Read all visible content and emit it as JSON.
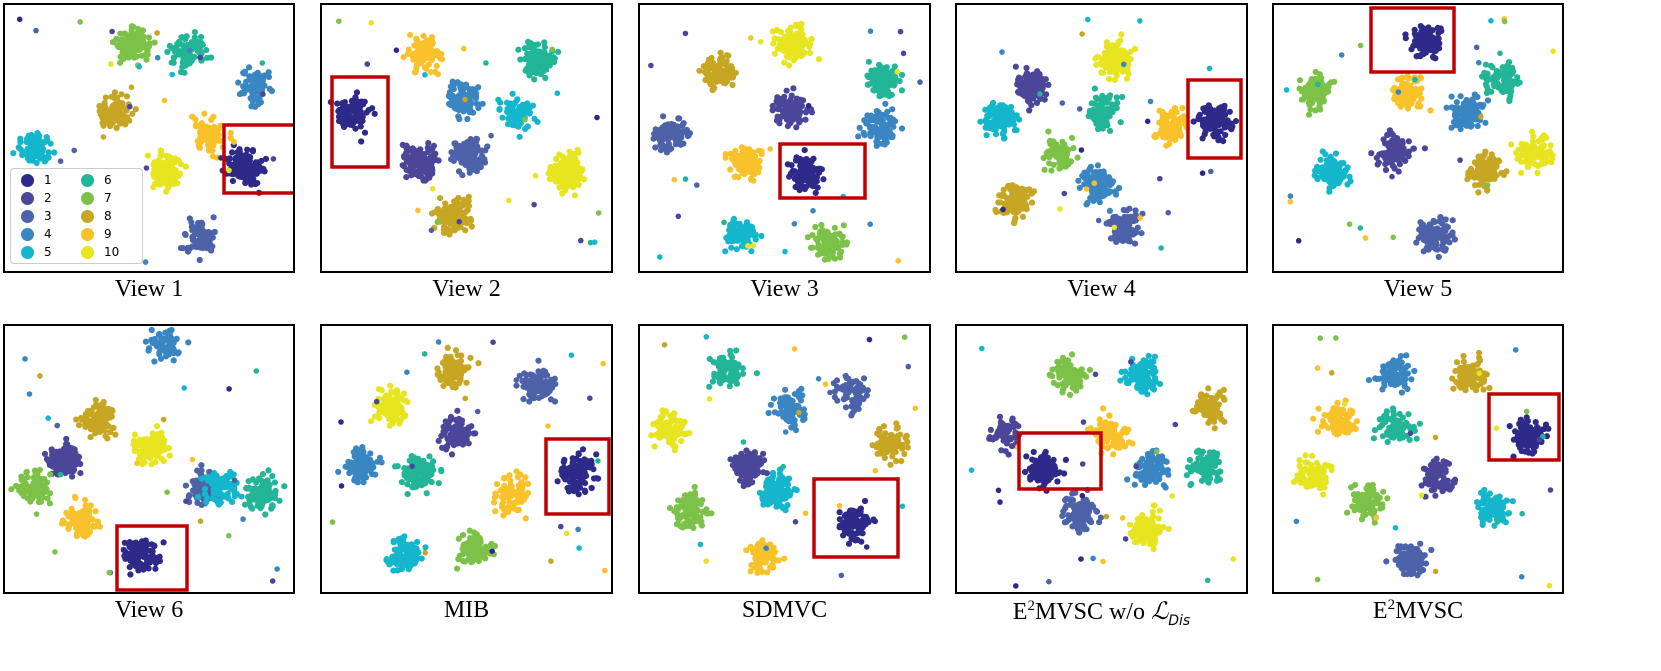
{
  "chart_data": {
    "type": "scatter",
    "legend": {
      "location": "lower-left of View 1",
      "entries": [
        "1",
        "2",
        "3",
        "4",
        "5",
        "6",
        "7",
        "8",
        "9",
        "10"
      ]
    },
    "highlight": {
      "class": "1",
      "box_color": "#c00000"
    },
    "colors": [
      "#2e2a8a",
      "#4b4699",
      "#4d62a8",
      "#3a86c2",
      "#14b6cc",
      "#22b598",
      "#7dc248",
      "#c6a623",
      "#f9c12a",
      "#e6e51f"
    ],
    "panels": [
      {
        "caption": "View 1",
        "clusters": [
          {
            "label": "1",
            "x": 0.82,
            "y": 0.6,
            "count": 150
          },
          {
            "label": "3",
            "x": 0.67,
            "y": 0.86,
            "count": 90
          },
          {
            "label": "4",
            "x": 0.85,
            "y": 0.3,
            "count": 90
          },
          {
            "label": "5",
            "x": 0.1,
            "y": 0.53,
            "count": 80
          },
          {
            "label": "6",
            "x": 0.63,
            "y": 0.17,
            "count": 90
          },
          {
            "label": "7",
            "x": 0.44,
            "y": 0.15,
            "count": 100
          },
          {
            "label": "8",
            "x": 0.37,
            "y": 0.4,
            "count": 100
          },
          {
            "label": "9",
            "x": 0.7,
            "y": 0.48,
            "count": 100
          },
          {
            "label": "10",
            "x": 0.55,
            "y": 0.62,
            "count": 90
          }
        ]
      },
      {
        "caption": "View 2",
        "clusters": [
          {
            "label": "1",
            "x": 0.11,
            "y": 0.4,
            "count": 100
          },
          {
            "label": "2",
            "x": 0.33,
            "y": 0.58,
            "count": 140
          },
          {
            "label": "3",
            "x": 0.5,
            "y": 0.55,
            "count": 120
          },
          {
            "label": "4",
            "x": 0.48,
            "y": 0.35,
            "count": 100
          },
          {
            "label": "5",
            "x": 0.66,
            "y": 0.4,
            "count": 80
          },
          {
            "label": "6",
            "x": 0.74,
            "y": 0.2,
            "count": 110
          },
          {
            "label": "8",
            "x": 0.45,
            "y": 0.78,
            "count": 130
          },
          {
            "label": "9",
            "x": 0.35,
            "y": 0.18,
            "count": 90
          },
          {
            "label": "10",
            "x": 0.84,
            "y": 0.62,
            "count": 170
          }
        ]
      },
      {
        "caption": "View 3",
        "clusters": [
          {
            "label": "1",
            "x": 0.56,
            "y": 0.62,
            "count": 110
          },
          {
            "label": "2",
            "x": 0.51,
            "y": 0.39,
            "count": 100
          },
          {
            "label": "3",
            "x": 0.11,
            "y": 0.48,
            "count": 100
          },
          {
            "label": "4",
            "x": 0.82,
            "y": 0.45,
            "count": 90
          },
          {
            "label": "5",
            "x": 0.35,
            "y": 0.85,
            "count": 90
          },
          {
            "label": "6",
            "x": 0.83,
            "y": 0.28,
            "count": 100
          },
          {
            "label": "7",
            "x": 0.64,
            "y": 0.88,
            "count": 90
          },
          {
            "label": "8",
            "x": 0.27,
            "y": 0.25,
            "count": 100
          },
          {
            "label": "9",
            "x": 0.36,
            "y": 0.58,
            "count": 100
          },
          {
            "label": "10",
            "x": 0.52,
            "y": 0.14,
            "count": 110
          }
        ]
      },
      {
        "caption": "View 4",
        "clusters": [
          {
            "label": "1",
            "x": 0.88,
            "y": 0.43,
            "count": 100
          },
          {
            "label": "2",
            "x": 0.25,
            "y": 0.3,
            "count": 110
          },
          {
            "label": "3",
            "x": 0.57,
            "y": 0.82,
            "count": 100
          },
          {
            "label": "4",
            "x": 0.48,
            "y": 0.67,
            "count": 130
          },
          {
            "label": "5",
            "x": 0.14,
            "y": 0.42,
            "count": 100
          },
          {
            "label": "6",
            "x": 0.5,
            "y": 0.4,
            "count": 90
          },
          {
            "label": "7",
            "x": 0.35,
            "y": 0.55,
            "count": 70
          },
          {
            "label": "8",
            "x": 0.2,
            "y": 0.73,
            "count": 110
          },
          {
            "label": "9",
            "x": 0.73,
            "y": 0.45,
            "count": 100
          },
          {
            "label": "10",
            "x": 0.54,
            "y": 0.2,
            "count": 140
          }
        ]
      },
      {
        "caption": "View 5",
        "clusters": [
          {
            "label": "1",
            "x": 0.52,
            "y": 0.13,
            "count": 100
          },
          {
            "label": "2",
            "x": 0.41,
            "y": 0.54,
            "count": 100
          },
          {
            "label": "3",
            "x": 0.55,
            "y": 0.85,
            "count": 100
          },
          {
            "label": "4",
            "x": 0.66,
            "y": 0.4,
            "count": 100
          },
          {
            "label": "5",
            "x": 0.2,
            "y": 0.62,
            "count": 100
          },
          {
            "label": "6",
            "x": 0.78,
            "y": 0.28,
            "count": 90
          },
          {
            "label": "7",
            "x": 0.14,
            "y": 0.32,
            "count": 100
          },
          {
            "label": "8",
            "x": 0.72,
            "y": 0.62,
            "count": 100
          },
          {
            "label": "9",
            "x": 0.46,
            "y": 0.32,
            "count": 90
          },
          {
            "label": "10",
            "x": 0.89,
            "y": 0.55,
            "count": 90
          }
        ]
      },
      {
        "caption": "View 6",
        "clusters": [
          {
            "label": "1",
            "x": 0.47,
            "y": 0.85,
            "count": 100
          },
          {
            "label": "2",
            "x": 0.2,
            "y": 0.5,
            "count": 120
          },
          {
            "label": "3",
            "x": 0.68,
            "y": 0.6,
            "count": 110
          },
          {
            "label": "4",
            "x": 0.55,
            "y": 0.07,
            "count": 60
          },
          {
            "label": "5",
            "x": 0.74,
            "y": 0.6,
            "count": 100
          },
          {
            "label": "6",
            "x": 0.88,
            "y": 0.62,
            "count": 100
          },
          {
            "label": "7",
            "x": 0.1,
            "y": 0.6,
            "count": 80
          },
          {
            "label": "8",
            "x": 0.32,
            "y": 0.35,
            "count": 100
          },
          {
            "label": "9",
            "x": 0.26,
            "y": 0.72,
            "count": 90
          },
          {
            "label": "10",
            "x": 0.5,
            "y": 0.45,
            "count": 110
          }
        ]
      },
      {
        "caption": "MIB",
        "clusters": [
          {
            "label": "1",
            "x": 0.87,
            "y": 0.55,
            "count": 110
          },
          {
            "label": "2",
            "x": 0.46,
            "y": 0.4,
            "count": 100
          },
          {
            "label": "3",
            "x": 0.74,
            "y": 0.22,
            "count": 100
          },
          {
            "label": "4",
            "x": 0.13,
            "y": 0.52,
            "count": 90
          },
          {
            "label": "5",
            "x": 0.28,
            "y": 0.85,
            "count": 100
          },
          {
            "label": "6",
            "x": 0.33,
            "y": 0.55,
            "count": 100
          },
          {
            "label": "7",
            "x": 0.52,
            "y": 0.83,
            "count": 100
          },
          {
            "label": "8",
            "x": 0.45,
            "y": 0.16,
            "count": 90
          },
          {
            "label": "9",
            "x": 0.65,
            "y": 0.62,
            "count": 100
          },
          {
            "label": "10",
            "x": 0.24,
            "y": 0.3,
            "count": 100
          }
        ]
      },
      {
        "caption": "SDMVC",
        "clusters": [
          {
            "label": "1",
            "x": 0.73,
            "y": 0.73,
            "count": 100
          },
          {
            "label": "2",
            "x": 0.37,
            "y": 0.52,
            "count": 100
          },
          {
            "label": "3",
            "x": 0.72,
            "y": 0.25,
            "count": 90
          },
          {
            "label": "4",
            "x": 0.51,
            "y": 0.3,
            "count": 90
          },
          {
            "label": "5",
            "x": 0.47,
            "y": 0.62,
            "count": 90
          },
          {
            "label": "6",
            "x": 0.3,
            "y": 0.16,
            "count": 90
          },
          {
            "label": "7",
            "x": 0.17,
            "y": 0.68,
            "count": 100
          },
          {
            "label": "8",
            "x": 0.85,
            "y": 0.43,
            "count": 90
          },
          {
            "label": "9",
            "x": 0.42,
            "y": 0.86,
            "count": 90
          },
          {
            "label": "10",
            "x": 0.1,
            "y": 0.38,
            "count": 90
          }
        ]
      },
      {
        "caption_prefix": "E",
        "caption_sup": "2",
        "caption_main": "MVSC w/o ",
        "caption_L": "ℒ",
        "caption_sub": "Dis",
        "clusters": [
          {
            "label": "1",
            "x": 0.3,
            "y": 0.53,
            "count": 100
          },
          {
            "label": "2",
            "x": 0.17,
            "y": 0.4,
            "count": 60
          },
          {
            "label": "3",
            "x": 0.42,
            "y": 0.69,
            "count": 100
          },
          {
            "label": "4",
            "x": 0.66,
            "y": 0.53,
            "count": 100
          },
          {
            "label": "5",
            "x": 0.63,
            "y": 0.18,
            "count": 100
          },
          {
            "label": "6",
            "x": 0.85,
            "y": 0.52,
            "count": 80
          },
          {
            "label": "7",
            "x": 0.38,
            "y": 0.18,
            "count": 90
          },
          {
            "label": "8",
            "x": 0.86,
            "y": 0.3,
            "count": 90
          },
          {
            "label": "9",
            "x": 0.52,
            "y": 0.4,
            "count": 100
          },
          {
            "label": "10",
            "x": 0.65,
            "y": 0.75,
            "count": 100
          }
        ]
      },
      {
        "caption_prefix": "E",
        "caption_sup": "2",
        "caption_main": "MVSC",
        "clusters": [
          {
            "label": "1",
            "x": 0.87,
            "y": 0.41,
            "count": 110
          },
          {
            "label": "2",
            "x": 0.56,
            "y": 0.56,
            "count": 90
          },
          {
            "label": "3",
            "x": 0.47,
            "y": 0.87,
            "count": 100
          },
          {
            "label": "4",
            "x": 0.41,
            "y": 0.18,
            "count": 90
          },
          {
            "label": "5",
            "x": 0.75,
            "y": 0.68,
            "count": 80
          },
          {
            "label": "6",
            "x": 0.42,
            "y": 0.38,
            "count": 80
          },
          {
            "label": "7",
            "x": 0.32,
            "y": 0.65,
            "count": 100
          },
          {
            "label": "8",
            "x": 0.67,
            "y": 0.18,
            "count": 90
          },
          {
            "label": "9",
            "x": 0.22,
            "y": 0.35,
            "count": 100
          },
          {
            "label": "10",
            "x": 0.13,
            "y": 0.55,
            "count": 90
          }
        ]
      }
    ]
  }
}
